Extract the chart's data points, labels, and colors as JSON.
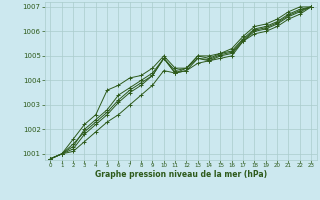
{
  "x": [
    0,
    1,
    2,
    3,
    4,
    5,
    6,
    7,
    8,
    9,
    10,
    11,
    12,
    13,
    14,
    15,
    16,
    17,
    18,
    19,
    20,
    21,
    22,
    23
  ],
  "line1": [
    1000.8,
    1001.0,
    1001.1,
    1001.5,
    1001.9,
    1002.3,
    1002.6,
    1003.0,
    1003.4,
    1003.8,
    1004.4,
    1004.3,
    1004.4,
    1004.7,
    1004.8,
    1004.9,
    1005.0,
    1005.6,
    1005.9,
    1006.0,
    1006.2,
    1006.5,
    1006.7,
    1007.0
  ],
  "line2": [
    1000.8,
    1001.0,
    1001.2,
    1001.8,
    1002.2,
    1002.6,
    1003.1,
    1003.5,
    1003.8,
    1004.2,
    1004.9,
    1004.3,
    1004.4,
    1004.9,
    1004.8,
    1005.0,
    1005.1,
    1005.6,
    1006.0,
    1006.1,
    1006.3,
    1006.6,
    1006.8,
    1007.0
  ],
  "line3": [
    1000.8,
    1001.0,
    1001.3,
    1002.0,
    1002.4,
    1002.8,
    1003.4,
    1003.7,
    1004.0,
    1004.3,
    1004.9,
    1004.4,
    1004.5,
    1005.0,
    1004.9,
    1005.1,
    1005.2,
    1005.7,
    1006.1,
    1006.2,
    1006.4,
    1006.7,
    1006.9,
    1007.0
  ],
  "line4_spike": [
    1000.8,
    1001.0,
    1001.6,
    1002.2,
    1002.6,
    1003.6,
    1003.8,
    1004.1,
    1004.2,
    1004.5,
    1005.0,
    1004.5,
    1004.5,
    1005.0,
    1005.0,
    1005.1,
    1005.3,
    1005.8,
    1006.2,
    1006.3,
    1006.5,
    1006.8,
    1007.0,
    1007.0
  ],
  "line5": [
    1000.8,
    1001.0,
    1001.4,
    1001.9,
    1002.3,
    1002.7,
    1003.2,
    1003.6,
    1003.9,
    1004.2,
    1004.9,
    1004.3,
    1004.5,
    1004.9,
    1004.85,
    1005.05,
    1005.15,
    1005.65,
    1006.05,
    1006.15,
    1006.35,
    1006.65,
    1006.85,
    1007.0
  ],
  "bg_color": "#cce8ef",
  "grid_color": "#aacccc",
  "line_color": "#2d5a1b",
  "text_color": "#2d5a1b",
  "xlabel": "Graphe pression niveau de la mer (hPa)",
  "ylim_min": 1000.75,
  "ylim_max": 1007.2,
  "xlim_min": -0.5,
  "xlim_max": 23.5,
  "yticks": [
    1001,
    1002,
    1003,
    1004,
    1005,
    1006,
    1007
  ]
}
